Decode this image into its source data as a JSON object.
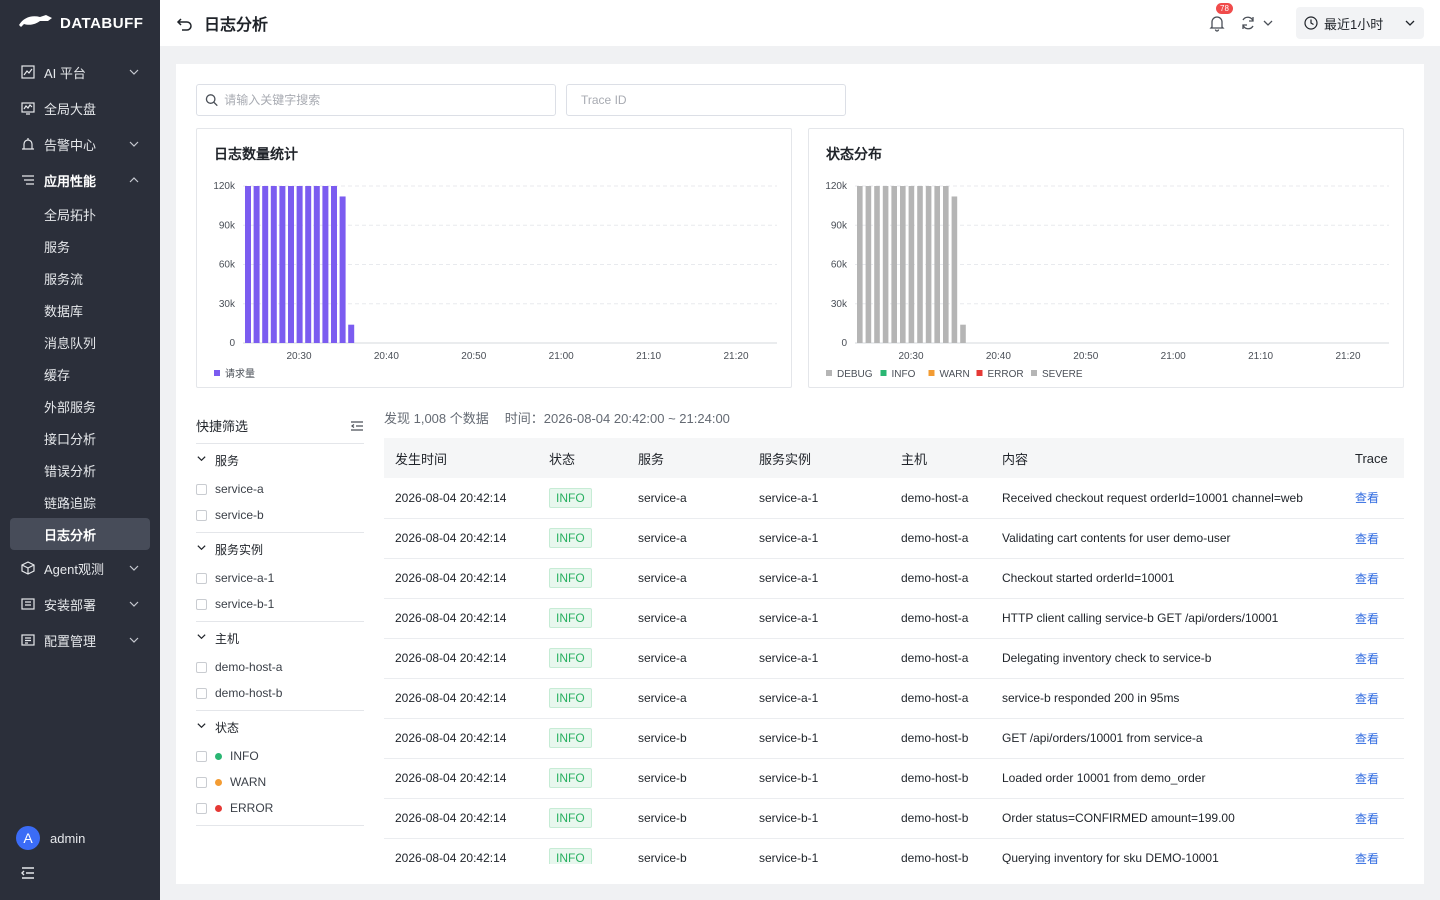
{
  "brand": {
    "name": "DATABUFF"
  },
  "sidebar": {
    "items": [
      {
        "label": "AI 平台",
        "icon": "chart-icon",
        "has_sub": true
      },
      {
        "label": "全局大盘",
        "icon": "dashboard-icon",
        "has_sub": false
      },
      {
        "label": "告警中心",
        "icon": "alarm-icon",
        "has_sub": true
      },
      {
        "label": "应用性能",
        "icon": "list-icon",
        "has_sub": true,
        "expanded": true
      }
    ],
    "sub_items": [
      "全局拓扑",
      "服务",
      "服务流",
      "数据库",
      "消息队列",
      "缓存",
      "外部服务",
      "接口分析",
      "错误分析",
      "链路追踪",
      "日志分析"
    ],
    "active_sub": "日志分析",
    "items_after": [
      {
        "label": "Agent观测",
        "icon": "cube-icon"
      },
      {
        "label": "安装部署",
        "icon": "install-icon"
      },
      {
        "label": "配置管理",
        "icon": "config-icon"
      }
    ],
    "user": {
      "initial": "A",
      "name": "admin"
    }
  },
  "header": {
    "title": "日志分析",
    "badge_count": "78",
    "time_range": "最近1小时"
  },
  "search": {
    "keyword_placeholder": "请输入关键字搜索",
    "trace_placeholder": "Trace ID"
  },
  "chart_data": [
    {
      "type": "bar",
      "title": "日志数量统计",
      "x_ticks": [
        "20:30",
        "20:40",
        "20:50",
        "21:00",
        "21:10",
        "21:20"
      ],
      "y_ticks": [
        "0",
        "30k",
        "60k",
        "90k",
        "120k"
      ],
      "ylim": [
        0,
        120000
      ],
      "series": [
        {
          "name": "请求量",
          "color": "#7b5cf0",
          "values": [
            120000,
            120000,
            120000,
            120000,
            120000,
            120000,
            120000,
            120000,
            120000,
            120000,
            120000,
            112000,
            14000
          ]
        }
      ],
      "legend_position": "bottom-left",
      "grid": true
    },
    {
      "type": "bar",
      "title": "状态分布",
      "x_ticks": [
        "20:30",
        "20:40",
        "20:50",
        "21:00",
        "21:10",
        "21:20"
      ],
      "y_ticks": [
        "0",
        "30k",
        "60k",
        "90k",
        "120k"
      ],
      "ylim": [
        0,
        120000
      ],
      "series": [
        {
          "name": "DEBUG",
          "color": "#b5b5b5",
          "values": [
            120000,
            120000,
            120000,
            120000,
            120000,
            120000,
            120000,
            120000,
            120000,
            120000,
            120000,
            112000,
            14000
          ]
        }
      ],
      "legend": [
        {
          "name": "DEBUG",
          "color": "#b5b5b5"
        },
        {
          "name": "INFO",
          "color": "#2ab673"
        },
        {
          "name": "WARN",
          "color": "#f39c33"
        },
        {
          "name": "ERROR",
          "color": "#e53935"
        },
        {
          "name": "SEVERE",
          "color": "#b5b5b5"
        }
      ],
      "legend_position": "bottom-left",
      "grid": true
    }
  ],
  "filter": {
    "title": "快捷筛选",
    "groups": [
      {
        "title": "服务",
        "options": [
          "service-a",
          "service-b"
        ]
      },
      {
        "title": "服务实例",
        "options": [
          "service-a-1",
          "service-b-1"
        ]
      },
      {
        "title": "主机",
        "options": [
          "demo-host-a",
          "demo-host-b"
        ]
      },
      {
        "title": "状态",
        "options": [
          {
            "label": "INFO",
            "color": "#2ab673"
          },
          {
            "label": "WARN",
            "color": "#f39c33"
          },
          {
            "label": "ERROR",
            "color": "#e53935"
          }
        ]
      }
    ]
  },
  "summary": {
    "found": "发现 1,008 个数据",
    "time": "时间：2026-08-04 20:42:00 ~ 21:24:00"
  },
  "table": {
    "columns": [
      "发生时间",
      "状态",
      "服务",
      "服务实例",
      "主机",
      "内容",
      "Trace"
    ],
    "link_label": "查看",
    "rows": [
      [
        "2026-08-04 20:42:14",
        "INFO",
        "service-a",
        "service-a-1",
        "demo-host-a",
        "Received checkout request orderId=10001 channel=web"
      ],
      [
        "2026-08-04 20:42:14",
        "INFO",
        "service-a",
        "service-a-1",
        "demo-host-a",
        "Validating cart contents for user demo-user"
      ],
      [
        "2026-08-04 20:42:14",
        "INFO",
        "service-a",
        "service-a-1",
        "demo-host-a",
        "Checkout started orderId=10001"
      ],
      [
        "2026-08-04 20:42:14",
        "INFO",
        "service-a",
        "service-a-1",
        "demo-host-a",
        "HTTP client calling service-b GET /api/orders/10001"
      ],
      [
        "2026-08-04 20:42:14",
        "INFO",
        "service-a",
        "service-a-1",
        "demo-host-a",
        "Delegating inventory check to service-b"
      ],
      [
        "2026-08-04 20:42:14",
        "INFO",
        "service-a",
        "service-a-1",
        "demo-host-a",
        "service-b responded 200 in 95ms"
      ],
      [
        "2026-08-04 20:42:14",
        "INFO",
        "service-b",
        "service-b-1",
        "demo-host-b",
        "GET /api/orders/10001 from service-a"
      ],
      [
        "2026-08-04 20:42:14",
        "INFO",
        "service-b",
        "service-b-1",
        "demo-host-b",
        "Loaded order 10001 from demo_order"
      ],
      [
        "2026-08-04 20:42:14",
        "INFO",
        "service-b",
        "service-b-1",
        "demo-host-b",
        "Order status=CONFIRMED amount=199.00"
      ],
      [
        "2026-08-04 20:42:14",
        "INFO",
        "service-b",
        "service-b-1",
        "demo-host-b",
        "Querying inventory for sku DEMO-10001"
      ]
    ]
  }
}
